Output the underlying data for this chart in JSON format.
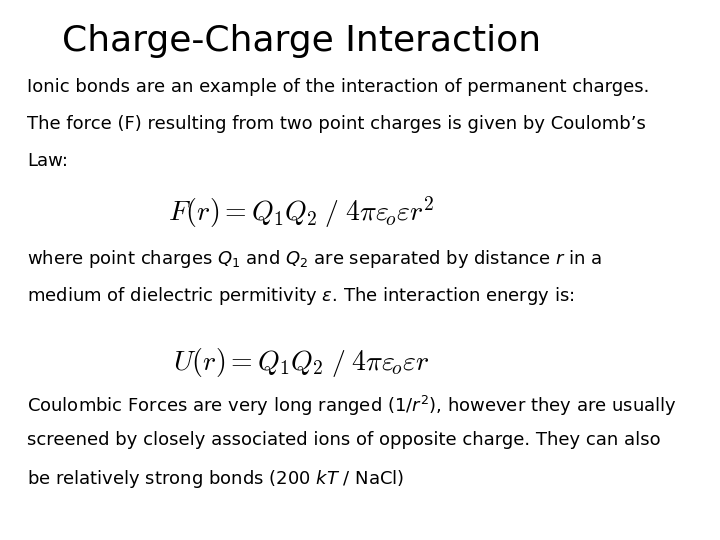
{
  "title": "Charge-Charge Interaction",
  "title_fontsize": 26,
  "title_font": "DejaVu Sans",
  "background_color": "#ffffff",
  "text_color": "#000000",
  "body_fontsize": 13,
  "body_font": "DejaVu Sans",
  "paragraph1": "Ionic bonds are an example of the interaction of permanent charges.\nThe force (F) resulting from two point charges is given by Coulomb’s\nLaw:",
  "formula1": "F(r) = Q_1Q_2\\,/\\,4\\pi\\varepsilon_o\\varepsilon r^2",
  "paragraph2": "where point charges $Q_1$ and $Q_2$ are separated by distance $r$ in a\nmedium of dielectric permitivity $\\varepsilon$. The interaction energy is:",
  "formula2": "U(r) = Q_1Q_2\\,/\\,4\\pi\\varepsilon_o\\varepsilon r",
  "paragraph3": "Coulombic Forces are very long ranged (1/$r^2$), however they are usually\nscreened by closely associated ions of opposite charge. They can also\nbe relatively strong bonds (200 $kT$ / NaCl)"
}
